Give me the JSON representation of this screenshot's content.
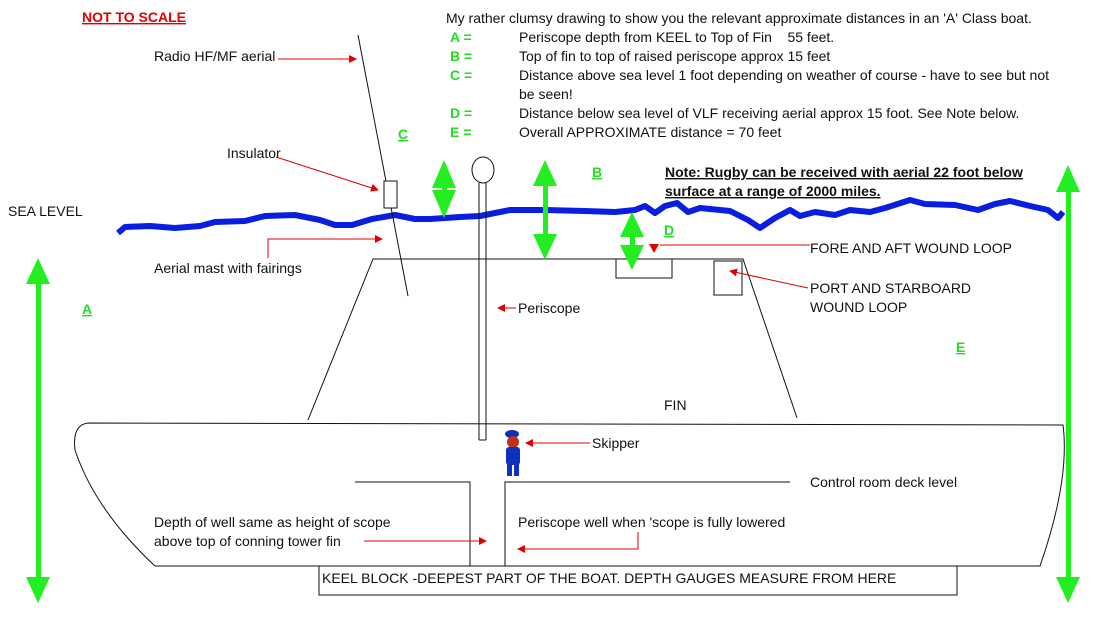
{
  "header": {
    "not_to_scale": "NOT TO SCALE",
    "intro": "My rather clumsy drawing to show you the relevant approximate distances in an 'A' Class boat."
  },
  "legend": [
    {
      "key": "A =",
      "text": "Periscope depth from KEEL to Top of Fin    55 feet."
    },
    {
      "key": "B =",
      "text": "Top of fin to top of raised periscope approx 15 feet"
    },
    {
      "key": "C =",
      "text": "Distance above sea level 1 foot depending on weather of course - have to see but not",
      "text2": "be seen!"
    },
    {
      "key": "D =",
      "text": "Distance below sea level of VLF receiving aerial approx 15 foot. See Note below."
    },
    {
      "key": "E =",
      "text": "Overall APPROXIMATE distance = 70 feet"
    }
  ],
  "dimension_labels": {
    "a": "A",
    "b": "B",
    "c": "C",
    "d": "D",
    "e": "E"
  },
  "note": {
    "line1": "Note: Rugby can be received with aerial 22 foot below",
    "line2": "surface at a range of 2000 miles."
  },
  "labels": {
    "radio_aerial": "Radio HF/MF aerial",
    "insulator": "Insulator",
    "sea_level": "SEA LEVEL",
    "aerial_mast": "Aerial mast with fairings",
    "periscope": "Periscope",
    "fore_aft": "FORE AND AFT WOUND LOOP",
    "port_starboard_1": "PORT AND STARBOARD",
    "port_starboard_2": "WOUND LOOP",
    "fin": "FIN",
    "skipper": "Skipper",
    "control_room": "Control room deck level",
    "well_depth_1": "Depth of well same as height of scope",
    "well_depth_2": "above top of conning tower fin",
    "periscope_well": "Periscope well when 'scope is fully lowered",
    "keel_block": "KEEL BLOCK -DEEPEST PART OF THE BOAT. DEPTH GAUGES MEASURE FROM HERE"
  },
  "colors": {
    "sea": "#0a1ee0",
    "dimension": "#22ee22",
    "pointer": "#e00000",
    "skipper": "#1030c0"
  }
}
